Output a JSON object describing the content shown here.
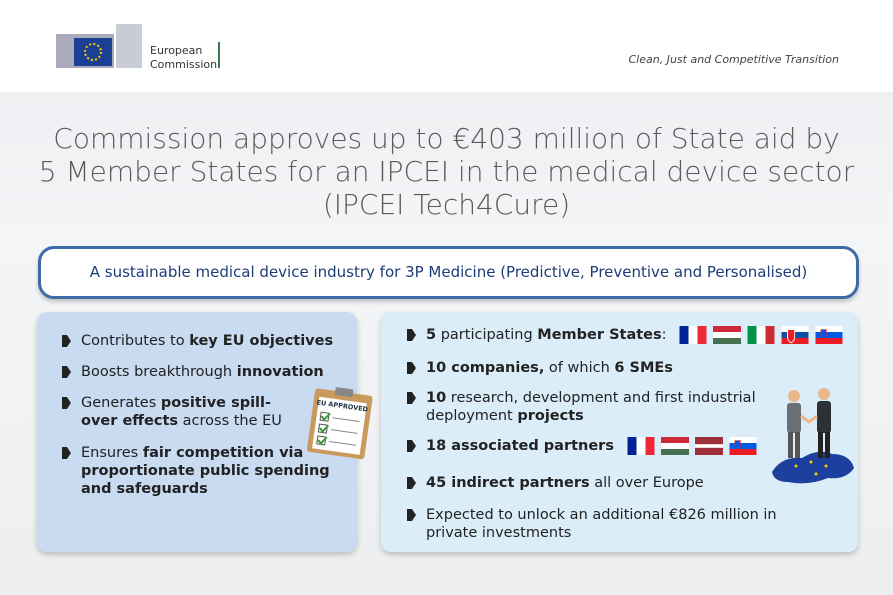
{
  "header": {
    "logo_text": [
      "European",
      "Commission"
    ],
    "tagline": "Clean, Just and Competitive Transition"
  },
  "title_lines": [
    "Commission approves up to €403 million of State aid by",
    "5 Member States for an IPCEI in the medical device sector",
    "(IPCEI Tech4Cure)"
  ],
  "banner": "A sustainable medical device industry for 3P Medicine (Predictive, Preventive and Personalised)",
  "clipboard": "EU APPROVED",
  "left": {
    "items": [
      [
        "Contributes to ",
        "key EU objectives"
      ],
      [
        "Boosts breakthrough ",
        "innovation"
      ],
      [
        "Generates ",
        "positive spill-over effects",
        " across the EU"
      ],
      [
        "Ensures ",
        "fair competition via proportionate public spending and safeguards"
      ]
    ]
  },
  "right": {
    "items": [
      [
        "5",
        " participating ",
        "Member States",
        ":"
      ],
      [
        "10 companies,",
        " of which ",
        "6 SMEs"
      ],
      [
        "10",
        " research, development and first industrial deployment ",
        "projects"
      ],
      [
        "18 associated partners"
      ],
      [
        "45 indirect partners",
        " all over Europe"
      ],
      [
        "Expected to unlock an additional €826 million in private investments"
      ]
    ]
  }
}
